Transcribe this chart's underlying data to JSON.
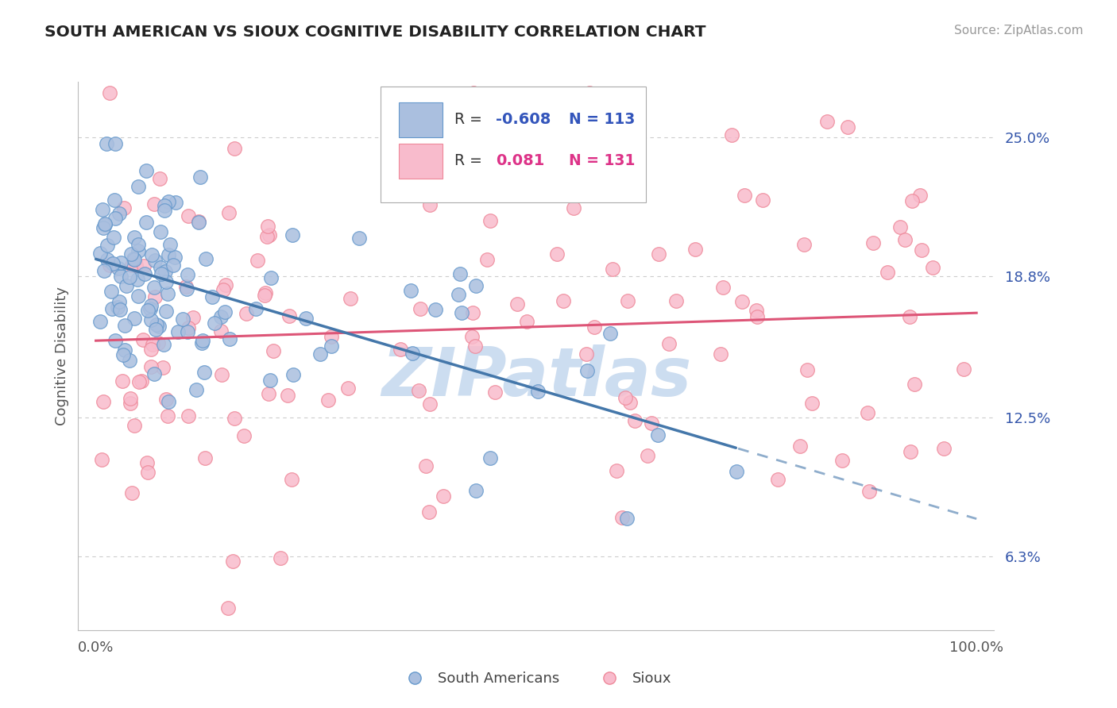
{
  "title": "SOUTH AMERICAN VS SIOUX COGNITIVE DISABILITY CORRELATION CHART",
  "source": "Source: ZipAtlas.com",
  "ylabel": "Cognitive Disability",
  "yticks": [
    0.063,
    0.125,
    0.188,
    0.25
  ],
  "ytick_labels": [
    "6.3%",
    "12.5%",
    "18.8%",
    "25.0%"
  ],
  "xlim": [
    -0.02,
    1.02
  ],
  "ylim": [
    0.03,
    0.275
  ],
  "blue_R": -0.608,
  "blue_N": 113,
  "pink_R": 0.081,
  "pink_N": 131,
  "blue_face": "#AABFDF",
  "blue_edge": "#6699CC",
  "pink_face": "#F8BBCC",
  "pink_edge": "#EE8899",
  "blue_line": "#4477AA",
  "pink_line": "#DD5577",
  "bg_color": "#FFFFFF",
  "grid_color": "#CCCCCC",
  "watermark_color": "#CCDDF0",
  "title_color": "#222222",
  "source_color": "#999999",
  "ylabel_color": "#555555",
  "xtick_color": "#555555",
  "ytick_color": "#3355AA",
  "legend_blue_color": "#3355BB",
  "legend_pink_color": "#DD3388",
  "legend_text_color": "#333333"
}
